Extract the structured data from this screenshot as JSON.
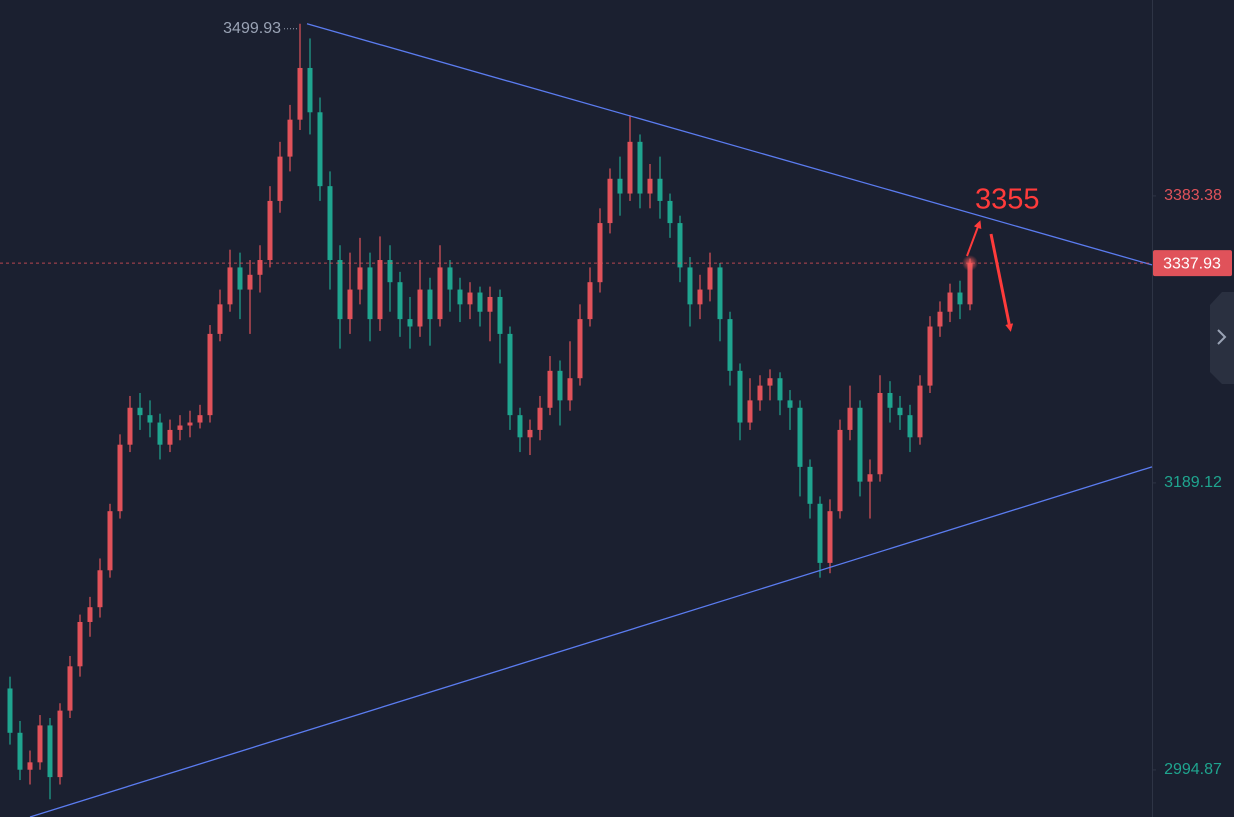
{
  "chart_data": {
    "type": "candlestick",
    "xlim": [
      -1,
      114.2
    ],
    "ylim": [
      2963,
      3516
    ],
    "yticks": [
      2994.87,
      3189.12,
      3383.38
    ],
    "up_color": "#e0525a",
    "down_color": "#1fa58f",
    "trend_color": "#5b7cf0",
    "open": [
      3050,
      3020,
      2995,
      3000,
      3025,
      2990,
      3035,
      3065,
      3095,
      3105,
      3130,
      3170,
      3215,
      3240,
      3235,
      3230,
      3215,
      3225,
      3228,
      3230,
      3235,
      3290,
      3310,
      3335,
      3320,
      3330,
      3340,
      3380,
      3410,
      3435,
      3470,
      3440,
      3390,
      3340,
      3300,
      3320,
      3335,
      3300,
      3340,
      3325,
      3300,
      3295,
      3320,
      3300,
      3335,
      3320,
      3310,
      3318,
      3305,
      3315,
      3290,
      3235,
      3220,
      3225,
      3240,
      3265,
      3245,
      3260,
      3300,
      3325,
      3365,
      3395,
      3385,
      3420,
      3385,
      3395,
      3380,
      3365,
      3335,
      3310,
      3320,
      3335,
      3300,
      3265,
      3230,
      3245,
      3255,
      3260,
      3245,
      3240,
      3200,
      3175,
      3135,
      3170,
      3225,
      3240,
      3190,
      3195,
      3250,
      3240,
      3235,
      3220,
      3255,
      3295,
      3305,
      3318,
      3310
    ],
    "high": [
      3058,
      3028,
      3008,
      3032,
      3030,
      3040,
      3072,
      3100,
      3112,
      3138,
      3175,
      3222,
      3248,
      3250,
      3245,
      3236,
      3232,
      3235,
      3238,
      3242,
      3296,
      3320,
      3347,
      3345,
      3340,
      3350,
      3390,
      3420,
      3445,
      3499.93,
      3490,
      3450,
      3400,
      3350,
      3345,
      3355,
      3345,
      3356,
      3350,
      3332,
      3315,
      3340,
      3328,
      3350,
      3340,
      3328,
      3325,
      3322,
      3322,
      3320,
      3295,
      3240,
      3232,
      3248,
      3275,
      3272,
      3285,
      3310,
      3335,
      3375,
      3402,
      3410,
      3438,
      3425,
      3405,
      3410,
      3385,
      3370,
      3342,
      3330,
      3345,
      3338,
      3305,
      3270,
      3260,
      3262,
      3266,
      3264,
      3252,
      3245,
      3205,
      3180,
      3178,
      3232,
      3255,
      3245,
      3205,
      3262,
      3258,
      3248,
      3242,
      3262,
      3302,
      3312,
      3324,
      3326,
      3341
    ],
    "low": [
      3012,
      2988,
      2985,
      2995,
      2975,
      2985,
      3030,
      3058,
      3085,
      3098,
      3125,
      3165,
      3210,
      3225,
      3220,
      3205,
      3210,
      3218,
      3220,
      3226,
      3230,
      3285,
      3305,
      3300,
      3290,
      3318,
      3335,
      3372,
      3400,
      3428,
      3425,
      3380,
      3320,
      3280,
      3290,
      3310,
      3285,
      3292,
      3305,
      3288,
      3280,
      3288,
      3282,
      3295,
      3305,
      3298,
      3300,
      3295,
      3285,
      3270,
      3225,
      3210,
      3208,
      3218,
      3235,
      3228,
      3238,
      3255,
      3295,
      3318,
      3358,
      3370,
      3380,
      3375,
      3375,
      3368,
      3355,
      3325,
      3295,
      3300,
      3312,
      3285,
      3255,
      3218,
      3225,
      3238,
      3245,
      3235,
      3225,
      3180,
      3165,
      3125,
      3128,
      3165,
      3218,
      3180,
      3165,
      3190,
      3230,
      3225,
      3210,
      3215,
      3250,
      3288,
      3298,
      3300,
      3306
    ],
    "close": [
      3020,
      2995,
      3000,
      3025,
      2990,
      3035,
      3065,
      3095,
      3105,
      3130,
      3170,
      3215,
      3240,
      3235,
      3230,
      3215,
      3225,
      3228,
      3230,
      3235,
      3290,
      3310,
      3335,
      3320,
      3330,
      3340,
      3380,
      3410,
      3435,
      3470,
      3440,
      3390,
      3340,
      3300,
      3320,
      3335,
      3300,
      3340,
      3325,
      3300,
      3295,
      3320,
      3300,
      3335,
      3320,
      3310,
      3318,
      3305,
      3315,
      3290,
      3235,
      3220,
      3225,
      3240,
      3265,
      3245,
      3260,
      3300,
      3325,
      3365,
      3395,
      3385,
      3420,
      3385,
      3395,
      3380,
      3365,
      3335,
      3310,
      3320,
      3335,
      3300,
      3265,
      3230,
      3245,
      3255,
      3260,
      3245,
      3240,
      3200,
      3175,
      3135,
      3170,
      3225,
      3240,
      3190,
      3195,
      3250,
      3240,
      3235,
      3220,
      3255,
      3295,
      3305,
      3318,
      3310,
      3337.93
    ],
    "trendlines": [
      {
        "x": [
          29.7,
          114.2
        ],
        "y": [
          3499.93,
          3336.7
        ]
      },
      {
        "x": [
          2,
          114.2
        ],
        "y": [
          2963,
          3200
        ]
      }
    ],
    "annotation": "3355"
  }
}
